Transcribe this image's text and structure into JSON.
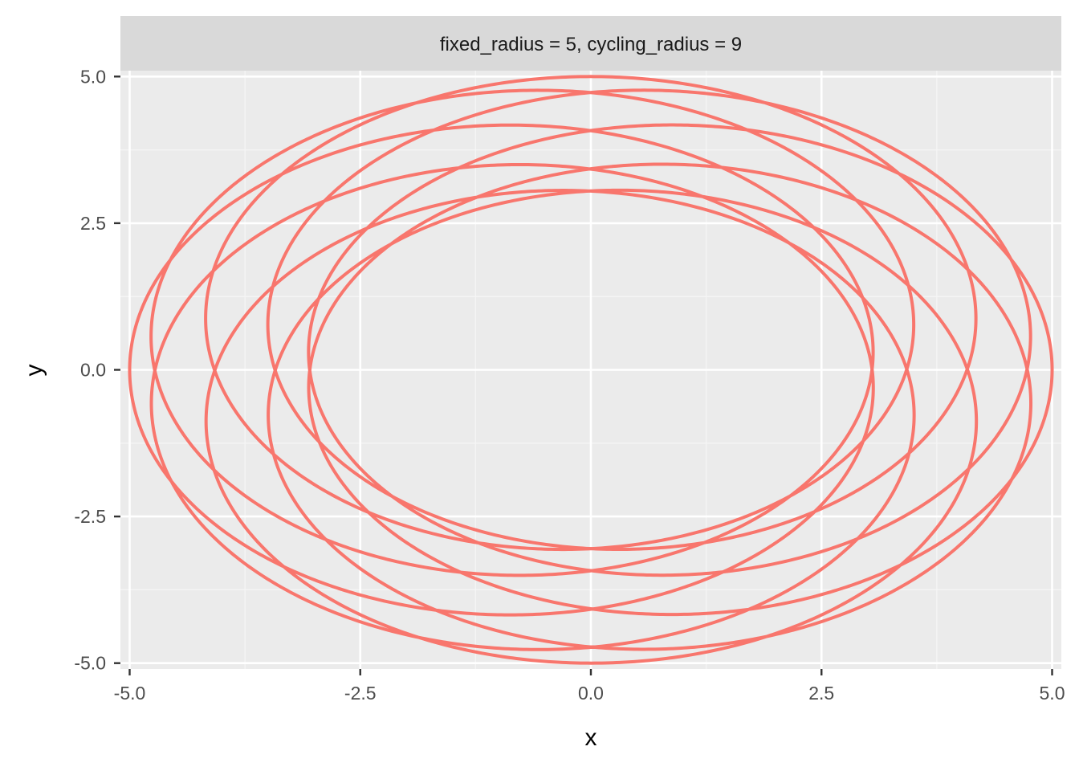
{
  "chart_data": {
    "type": "line",
    "facet_label": "fixed_radius = 5, cycling_radius = 9",
    "xlabel": "x",
    "ylabel": "y",
    "xlim": [
      -5.1,
      5.1
    ],
    "ylim": [
      -5.1,
      5.1
    ],
    "x_ticks": [
      -5.0,
      -2.5,
      0.0,
      2.5,
      5.0
    ],
    "x_tick_labels": [
      "-5.0",
      "-2.5",
      "0.0",
      "2.5",
      "5.0"
    ],
    "y_ticks": [
      -5.0,
      -2.5,
      0.0,
      2.5,
      5.0
    ],
    "y_tick_labels": [
      "-5.0",
      "-2.5",
      "0.0",
      "2.5",
      "5.0"
    ],
    "grid": true,
    "legend": "none",
    "series_color": "#F8766D",
    "curve": {
      "shape": "rotating ellipse (inner-rotating curve)",
      "semi_major_axis": 5.0,
      "semi_minor_axis": 3.0,
      "parameter_range_turns": 9,
      "precession_ratio": 0.5556
    }
  },
  "colors": {
    "panel_background": "#ebebeb",
    "strip_background": "#d9d9d9",
    "grid_major": "#ffffff",
    "grid_minor": "#f5f5f5",
    "tick_mark": "#333333"
  }
}
